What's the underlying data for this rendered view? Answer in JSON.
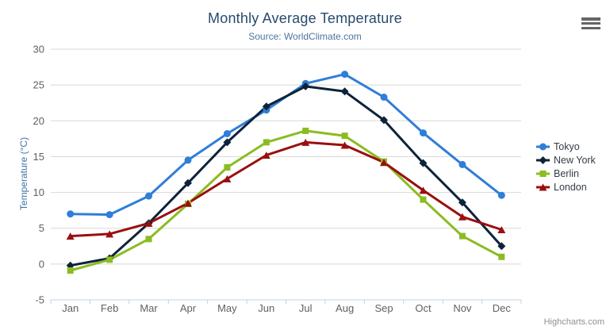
{
  "chart": {
    "title": "Monthly Average Temperature",
    "subtitle": "Source: WorldClimate.com",
    "credit": "Highcharts.com"
  },
  "icons": {
    "menu": "hamburger-menu-icon"
  },
  "colors": {
    "title": "#274b6d",
    "subtitle": "#4d759e",
    "yaxis_title": "#4572A7",
    "axis_labels": "#606060",
    "gridline": "#D8D8D8",
    "axis_line": "#C0D0E0",
    "legend_text": "#333c46",
    "credits": "#909090"
  },
  "chart_data": {
    "type": "line",
    "title": "Monthly Average Temperature",
    "subtitle": "Source: WorldClimate.com",
    "xlabel": "",
    "ylabel": "Temperature (°C)",
    "ylim": [
      -5,
      30
    ],
    "yticks": [
      -5,
      0,
      5,
      10,
      15,
      20,
      25,
      30
    ],
    "grid": true,
    "legend_position": "right",
    "categories": [
      "Jan",
      "Feb",
      "Mar",
      "Apr",
      "May",
      "Jun",
      "Jul",
      "Aug",
      "Sep",
      "Oct",
      "Nov",
      "Dec"
    ],
    "series": [
      {
        "name": "Tokyo",
        "color": "#2f7ed8",
        "marker": "circle",
        "values": [
          7.0,
          6.9,
          9.5,
          14.5,
          18.2,
          21.5,
          25.2,
          26.5,
          23.3,
          18.3,
          13.9,
          9.6
        ]
      },
      {
        "name": "New York",
        "color": "#0d233a",
        "marker": "diamond",
        "values": [
          -0.2,
          0.8,
          5.7,
          11.3,
          17.0,
          22.0,
          24.8,
          24.1,
          20.1,
          14.1,
          8.6,
          2.5
        ]
      },
      {
        "name": "Berlin",
        "color": "#8bbc21",
        "marker": "square",
        "values": [
          -0.9,
          0.6,
          3.5,
          8.4,
          13.5,
          17.0,
          18.6,
          17.9,
          14.3,
          9.0,
          3.9,
          1.0
        ]
      },
      {
        "name": "London",
        "color": "#9a0f0f",
        "marker": "triangle",
        "values": [
          3.9,
          4.2,
          5.7,
          8.5,
          11.9,
          15.2,
          17.0,
          16.6,
          14.2,
          10.3,
          6.6,
          4.8
        ]
      }
    ]
  }
}
